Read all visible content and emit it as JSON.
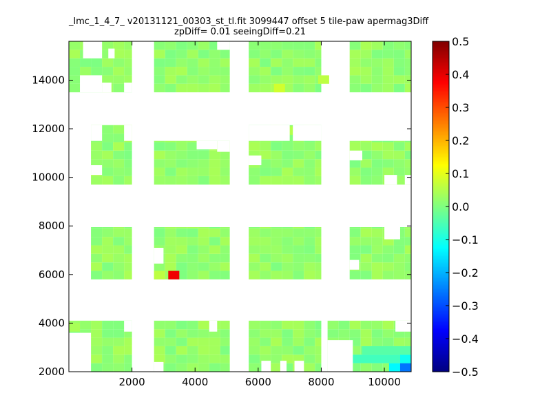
{
  "title": {
    "line1": "_lmc_1_4_7_ v20131121_00303_st_tl.fit 3099447 offset 5 tile-paw apermag3Diff",
    "line2": "zpDiff= 0.01 seeingDiff=0.21"
  },
  "chart_data": {
    "type": "heatmap",
    "xlim": [
      0,
      10850
    ],
    "ylim": [
      2000,
      15600
    ],
    "xticks": [
      2000,
      4000,
      6000,
      8000,
      10000
    ],
    "yticks": [
      2000,
      4000,
      6000,
      8000,
      10000,
      12000,
      14000
    ],
    "colorbar": {
      "colormap": "jet",
      "vmin": -0.5,
      "vmax": 0.5,
      "ticks": [
        0.5,
        0.4,
        0.3,
        0.2,
        0.1,
        0.0,
        -0.1,
        -0.2,
        -0.3,
        -0.4,
        -0.5
      ],
      "tick_labels": [
        "0.5",
        "0.4",
        "0.3",
        "0.2",
        "0.1",
        "0.0",
        "−0.1",
        "−0.2",
        "−0.3",
        "−0.4",
        "−0.5"
      ]
    },
    "cell_size": 350,
    "tile_value_default": 0.02,
    "tiles": [
      {
        "x": [
          0,
          2000
        ],
        "y": [
          2000,
          4100
        ]
      },
      {
        "x": [
          2700,
          5100
        ],
        "y": [
          2000,
          4100
        ]
      },
      {
        "x": [
          5700,
          8000
        ],
        "y": [
          2000,
          4100
        ]
      },
      {
        "x": [
          8200,
          10850
        ],
        "y": [
          2000,
          4100
        ]
      },
      {
        "x": [
          700,
          2000
        ],
        "y": [
          5800,
          7950
        ]
      },
      {
        "x": [
          2700,
          5100
        ],
        "y": [
          5800,
          7950
        ]
      },
      {
        "x": [
          5700,
          8000
        ],
        "y": [
          5800,
          7950
        ]
      },
      {
        "x": [
          8900,
          10850
        ],
        "y": [
          5800,
          7950
        ]
      },
      {
        "x": [
          700,
          2000
        ],
        "y": [
          9700,
          12150
        ]
      },
      {
        "x": [
          2700,
          5100
        ],
        "y": [
          9700,
          11500
        ]
      },
      {
        "x": [
          5700,
          8000
        ],
        "y": [
          9700,
          12150
        ]
      },
      {
        "x": [
          8900,
          10850
        ],
        "y": [
          9700,
          11500
        ]
      },
      {
        "x": [
          0,
          2000
        ],
        "y": [
          13500,
          15600
        ]
      },
      {
        "x": [
          2700,
          5100
        ],
        "y": [
          13500,
          15600
        ]
      },
      {
        "x": [
          5700,
          8000
        ],
        "y": [
          13500,
          15600
        ]
      },
      {
        "x": [
          8900,
          10850
        ],
        "y": [
          13500,
          15600
        ]
      }
    ],
    "holes": [
      {
        "x": [
          0,
          700
        ],
        "y": [
          2000,
          3600
        ]
      },
      {
        "x": [
          1750,
          2000
        ],
        "y": [
          3650,
          4100
        ]
      },
      {
        "x": [
          2700,
          3000
        ],
        "y": [
          2000,
          2400
        ]
      },
      {
        "x": [
          4450,
          4700
        ],
        "y": [
          3650,
          4100
        ]
      },
      {
        "x": [
          6100,
          6400
        ],
        "y": [
          2000,
          2450
        ]
      },
      {
        "x": [
          6700,
          6900
        ],
        "y": [
          2000,
          2450
        ]
      },
      {
        "x": [
          7150,
          7450
        ],
        "y": [
          2000,
          2450
        ]
      },
      {
        "x": [
          8200,
          9000
        ],
        "y": [
          2000,
          3300
        ]
      },
      {
        "x": [
          10350,
          10850
        ],
        "y": [
          3650,
          4100
        ]
      },
      {
        "x": [
          2700,
          3000
        ],
        "y": [
          6450,
          7100
        ]
      },
      {
        "x": [
          8900,
          9200
        ],
        "y": [
          6200,
          6600
        ]
      },
      {
        "x": [
          10000,
          10500
        ],
        "y": [
          7450,
          7950
        ]
      },
      {
        "x": [
          700,
          1050
        ],
        "y": [
          10100,
          10500
        ]
      },
      {
        "x": [
          700,
          1050
        ],
        "y": [
          11500,
          12150
        ]
      },
      {
        "x": [
          1750,
          2000
        ],
        "y": [
          11500,
          12150
        ]
      },
      {
        "x": [
          4050,
          4700
        ],
        "y": [
          11150,
          11500
        ]
      },
      {
        "x": [
          4700,
          5100
        ],
        "y": [
          11050,
          11500
        ]
      },
      {
        "x": [
          5700,
          6100
        ],
        "y": [
          10500,
          10900
        ]
      },
      {
        "x": [
          5700,
          7000
        ],
        "y": [
          11500,
          12150
        ]
      },
      {
        "x": [
          7100,
          8000
        ],
        "y": [
          11500,
          12150
        ]
      },
      {
        "x": [
          8900,
          9300
        ],
        "y": [
          10700,
          11100
        ]
      },
      {
        "x": [
          10000,
          10400
        ],
        "y": [
          9700,
          10100
        ]
      },
      {
        "x": [
          10650,
          10850
        ],
        "y": [
          9700,
          10100
        ]
      },
      {
        "x": [
          450,
          1050
        ],
        "y": [
          14900,
          15600
        ]
      },
      {
        "x": [
          350,
          1050
        ],
        "y": [
          13500,
          14200
        ]
      },
      {
        "x": [
          1250,
          1450
        ],
        "y": [
          14900,
          15300
        ]
      },
      {
        "x": [
          1050,
          1350
        ],
        "y": [
          13500,
          13900
        ]
      },
      {
        "x": [
          1750,
          2000
        ],
        "y": [
          13500,
          13900
        ]
      },
      {
        "x": [
          4700,
          5100
        ],
        "y": [
          15250,
          15600
        ]
      }
    ],
    "cells": [
      {
        "x": 3150,
        "y": 5800,
        "w": 350,
        "h": 350,
        "value": 0.39
      },
      {
        "x": 2700,
        "y": 5800,
        "w": 350,
        "h": 350,
        "value": 0.06
      },
      {
        "x": 10150,
        "y": 2000,
        "w": 350,
        "h": 350,
        "value": -0.13
      },
      {
        "x": 10500,
        "y": 2000,
        "w": 350,
        "h": 350,
        "value": -0.26
      },
      {
        "x": 10500,
        "y": 2350,
        "w": 350,
        "h": 350,
        "value": -0.11
      },
      {
        "x": 8900,
        "y": 2350,
        "w": 1600,
        "h": 350,
        "value": -0.06
      },
      {
        "x": 9300,
        "y": 2700,
        "w": 1550,
        "h": 350,
        "value": -0.04
      },
      {
        "x": 6500,
        "y": 13500,
        "w": 350,
        "h": 350,
        "value": 0.08
      },
      {
        "x": 7900,
        "y": 13850,
        "w": 350,
        "h": 350,
        "value": 0.06
      },
      {
        "x": 6750,
        "y": 11750,
        "w": 350,
        "h": 350,
        "value": 0.05
      },
      {
        "x": 0,
        "y": 3650,
        "w": 350,
        "h": 350,
        "value": 0.04
      }
    ]
  }
}
